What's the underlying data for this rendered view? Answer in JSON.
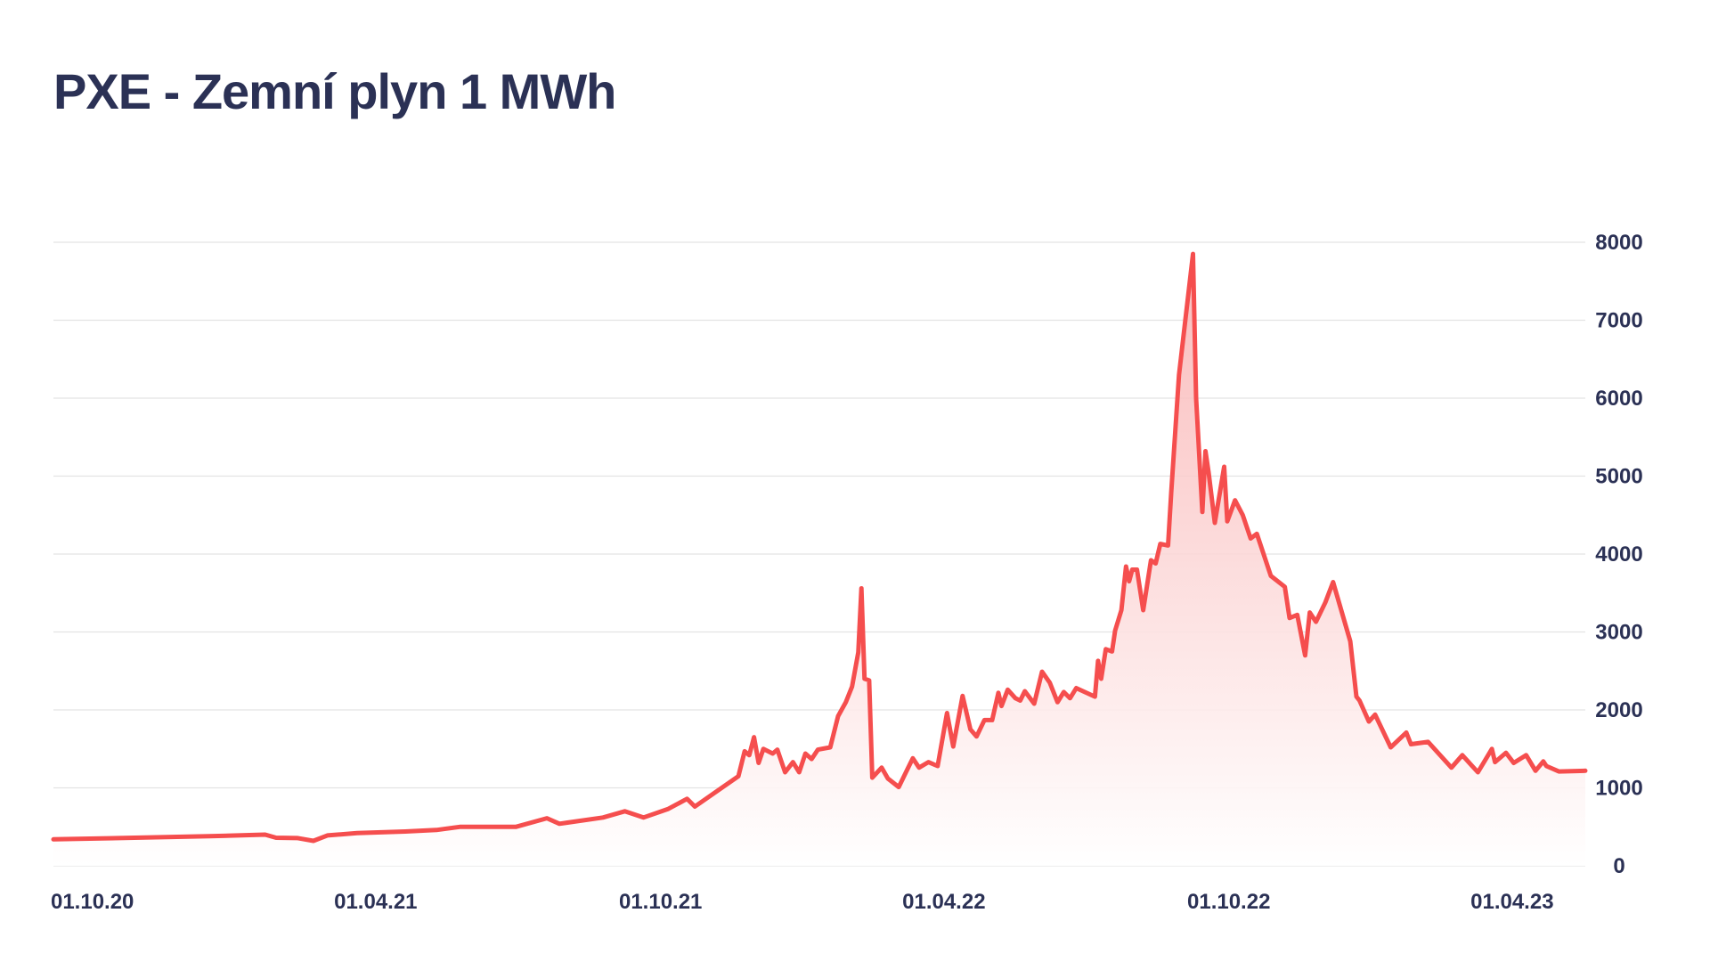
{
  "colors": {
    "line": "#f54e4e",
    "fill_top": "#f9b0b0",
    "grid": "#e3e3e3",
    "text": "#2b3155"
  },
  "chart_data": {
    "type": "area",
    "title": "PXE - Zemní plyn 1 MWh",
    "xlabel": "",
    "ylabel": "",
    "y_axis_position": "right",
    "grid": "horizontal",
    "ylim": [
      0,
      8000
    ],
    "yticks": [
      0,
      1000,
      2000,
      3000,
      4000,
      5000,
      6000,
      7000,
      8000
    ],
    "xlim": [
      "2020-09-06",
      "2023-05-18"
    ],
    "xticks": [
      {
        "date": "2020-10-01",
        "label": "01.10.20"
      },
      {
        "date": "2021-04-01",
        "label": "01.04.21"
      },
      {
        "date": "2021-10-01",
        "label": "01.10.21"
      },
      {
        "date": "2022-04-01",
        "label": "01.04.22"
      },
      {
        "date": "2022-10-01",
        "label": "01.10.22"
      },
      {
        "date": "2023-04-01",
        "label": "01.04.23"
      }
    ],
    "series": [
      {
        "points": [
          [
            "2020-09-06",
            340
          ],
          [
            "2020-12-15",
            380
          ],
          [
            "2021-01-20",
            400
          ],
          [
            "2021-01-27",
            360
          ],
          [
            "2021-02-10",
            355
          ],
          [
            "2021-02-20",
            320
          ],
          [
            "2021-03-01",
            390
          ],
          [
            "2021-03-20",
            420
          ],
          [
            "2021-04-20",
            440
          ],
          [
            "2021-05-10",
            460
          ],
          [
            "2021-05-25",
            500
          ],
          [
            "2021-06-30",
            500
          ],
          [
            "2021-07-20",
            610
          ],
          [
            "2021-07-28",
            540
          ],
          [
            "2021-08-25",
            620
          ],
          [
            "2021-09-08",
            700
          ],
          [
            "2021-09-20",
            620
          ],
          [
            "2021-10-06",
            730
          ],
          [
            "2021-10-18",
            860
          ],
          [
            "2021-10-23",
            760
          ],
          [
            "2021-11-20",
            1150
          ],
          [
            "2021-11-24",
            1470
          ],
          [
            "2021-11-27",
            1420
          ],
          [
            "2021-11-30",
            1650
          ],
          [
            "2021-12-03",
            1320
          ],
          [
            "2021-12-06",
            1500
          ],
          [
            "2021-12-12",
            1440
          ],
          [
            "2021-12-15",
            1490
          ],
          [
            "2021-12-20",
            1200
          ],
          [
            "2021-12-25",
            1330
          ],
          [
            "2021-12-29",
            1200
          ],
          [
            "2022-01-02",
            1440
          ],
          [
            "2022-01-06",
            1370
          ],
          [
            "2022-01-10",
            1490
          ],
          [
            "2022-01-18",
            1520
          ],
          [
            "2022-01-23",
            1920
          ],
          [
            "2022-01-28",
            2100
          ],
          [
            "2022-02-01",
            2300
          ],
          [
            "2022-02-05",
            2740
          ],
          [
            "2022-02-07",
            3560
          ],
          [
            "2022-02-09",
            2400
          ],
          [
            "2022-02-12",
            2380
          ],
          [
            "2022-02-14",
            1130
          ],
          [
            "2022-02-20",
            1260
          ],
          [
            "2022-02-24",
            1120
          ],
          [
            "2022-03-03",
            1010
          ],
          [
            "2022-03-12",
            1380
          ],
          [
            "2022-03-16",
            1260
          ],
          [
            "2022-03-22",
            1330
          ],
          [
            "2022-03-28",
            1280
          ],
          [
            "2022-04-03",
            1960
          ],
          [
            "2022-04-07",
            1530
          ],
          [
            "2022-04-13",
            2180
          ],
          [
            "2022-04-18",
            1750
          ],
          [
            "2022-04-22",
            1660
          ],
          [
            "2022-04-27",
            1870
          ],
          [
            "2022-05-02",
            1870
          ],
          [
            "2022-05-06",
            2220
          ],
          [
            "2022-05-08",
            2050
          ],
          [
            "2022-05-12",
            2260
          ],
          [
            "2022-05-17",
            2150
          ],
          [
            "2022-05-20",
            2120
          ],
          [
            "2022-05-23",
            2240
          ],
          [
            "2022-05-29",
            2080
          ],
          [
            "2022-06-03",
            2490
          ],
          [
            "2022-06-08",
            2350
          ],
          [
            "2022-06-13",
            2100
          ],
          [
            "2022-06-17",
            2230
          ],
          [
            "2022-06-21",
            2150
          ],
          [
            "2022-06-25",
            2280
          ],
          [
            "2022-07-07",
            2170
          ],
          [
            "2022-07-09",
            2630
          ],
          [
            "2022-07-11",
            2400
          ],
          [
            "2022-07-14",
            2780
          ],
          [
            "2022-07-18",
            2750
          ],
          [
            "2022-07-20",
            3020
          ],
          [
            "2022-07-24",
            3280
          ],
          [
            "2022-07-27",
            3840
          ],
          [
            "2022-07-29",
            3650
          ],
          [
            "2022-07-31",
            3800
          ],
          [
            "2022-08-03",
            3800
          ],
          [
            "2022-08-07",
            3280
          ],
          [
            "2022-08-12",
            3920
          ],
          [
            "2022-08-15",
            3880
          ],
          [
            "2022-08-18",
            4130
          ],
          [
            "2022-08-23",
            4110
          ],
          [
            "2022-08-25",
            4780
          ],
          [
            "2022-08-30",
            6300
          ],
          [
            "2022-09-08",
            7850
          ],
          [
            "2022-09-10",
            6000
          ],
          [
            "2022-09-14",
            4540
          ],
          [
            "2022-09-16",
            5320
          ],
          [
            "2022-09-18",
            5050
          ],
          [
            "2022-09-22",
            4400
          ],
          [
            "2022-09-28",
            5120
          ],
          [
            "2022-09-30",
            4420
          ],
          [
            "2022-10-05",
            4690
          ],
          [
            "2022-10-10",
            4500
          ],
          [
            "2022-10-15",
            4200
          ],
          [
            "2022-10-19",
            4260
          ],
          [
            "2022-10-28",
            3720
          ],
          [
            "2022-11-06",
            3580
          ],
          [
            "2022-11-09",
            3180
          ],
          [
            "2022-11-14",
            3220
          ],
          [
            "2022-11-19",
            2700
          ],
          [
            "2022-11-22",
            3250
          ],
          [
            "2022-11-26",
            3130
          ],
          [
            "2022-12-02",
            3380
          ],
          [
            "2022-12-07",
            3640
          ],
          [
            "2022-12-18",
            2880
          ],
          [
            "2022-12-22",
            2170
          ],
          [
            "2022-12-24",
            2120
          ],
          [
            "2022-12-30",
            1850
          ],
          [
            "2023-01-03",
            1940
          ],
          [
            "2023-01-13",
            1520
          ],
          [
            "2023-01-23",
            1710
          ],
          [
            "2023-01-26",
            1560
          ],
          [
            "2023-02-06",
            1590
          ],
          [
            "2023-02-21",
            1260
          ],
          [
            "2023-02-28",
            1420
          ],
          [
            "2023-03-10",
            1200
          ],
          [
            "2023-03-19",
            1500
          ],
          [
            "2023-03-21",
            1330
          ],
          [
            "2023-03-28",
            1450
          ],
          [
            "2023-04-02",
            1320
          ],
          [
            "2023-04-10",
            1420
          ],
          [
            "2023-04-16",
            1220
          ],
          [
            "2023-04-21",
            1340
          ],
          [
            "2023-04-23",
            1280
          ],
          [
            "2023-05-01",
            1210
          ],
          [
            "2023-05-18",
            1220
          ]
        ]
      }
    ]
  }
}
